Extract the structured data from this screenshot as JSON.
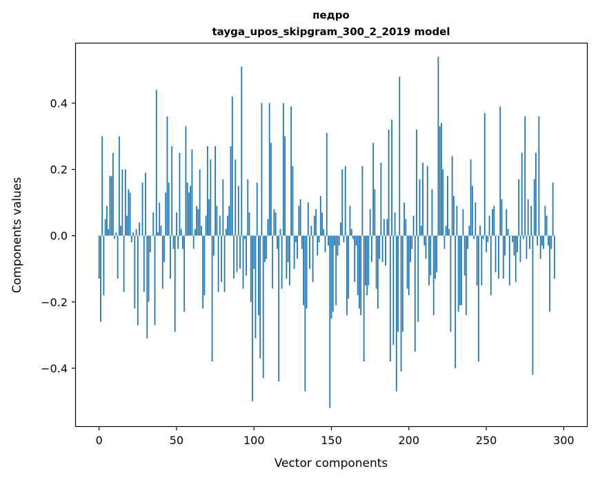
{
  "chart_data": {
    "type": "bar",
    "title": "педро",
    "subtitle": "tayga_upos_skipgram_300_2_2019 model",
    "xlabel": "Vector components",
    "ylabel": "Components values",
    "xlim": [
      -15,
      315
    ],
    "ylim": [
      -0.575,
      0.58
    ],
    "xticks": [
      0,
      50,
      100,
      150,
      200,
      250,
      300
    ],
    "yticks": [
      -0.4,
      -0.2,
      0.0,
      0.2,
      0.4
    ],
    "ytick_labels": [
      "−0.4",
      "−0.2",
      "0.0",
      "0.2",
      "0.4"
    ],
    "bar_color": "#1f77b4",
    "grid": false,
    "values": [
      -0.13,
      -0.26,
      0.3,
      -0.18,
      0.05,
      0.09,
      0.02,
      0.18,
      0.18,
      0.25,
      -0.01,
      0.01,
      -0.13,
      0.3,
      0.03,
      0.2,
      -0.17,
      0.2,
      0.06,
      0.14,
      0.13,
      -0.02,
      0.01,
      -0.22,
      0.02,
      -0.27,
      0.04,
      0.0,
      0.16,
      -0.17,
      0.19,
      -0.31,
      -0.2,
      -0.05,
      0.0,
      0.07,
      -0.27,
      0.44,
      0.01,
      0.1,
      0.03,
      -0.16,
      -0.08,
      0.13,
      0.36,
      0.16,
      -0.13,
      0.27,
      -0.04,
      -0.29,
      0.07,
      -0.04,
      0.25,
      0.02,
      -0.04,
      -0.23,
      0.33,
      0.16,
      0.13,
      0.15,
      0.26,
      -0.04,
      0.02,
      0.09,
      0.08,
      0.2,
      0.03,
      -0.22,
      -0.18,
      0.06,
      0.27,
      0.11,
      0.23,
      -0.38,
      -0.06,
      0.27,
      0.09,
      -0.17,
      0.06,
      -0.14,
      0.17,
      -0.17,
      0.02,
      0.06,
      0.09,
      0.27,
      0.42,
      -0.13,
      0.23,
      -0.11,
      0.15,
      -0.1,
      0.51,
      -0.16,
      -0.01,
      -0.12,
      0.17,
      0.07,
      -0.2,
      -0.5,
      -0.1,
      -0.31,
      0.16,
      -0.24,
      -0.37,
      0.4,
      -0.43,
      -0.08,
      -0.07,
      0.05,
      0.4,
      0.28,
      -0.16,
      0.08,
      0.07,
      -0.04,
      -0.44,
      0.02,
      -0.16,
      0.4,
      0.3,
      -0.13,
      -0.08,
      -0.15,
      0.39,
      0.21,
      -0.1,
      -0.02,
      -0.07,
      0.09,
      0.11,
      -0.04,
      -0.21,
      -0.47,
      -0.22,
      0.1,
      -0.1,
      0.03,
      -0.14,
      0.06,
      0.08,
      -0.06,
      -0.02,
      0.12,
      0.07,
      0.02,
      -0.05,
      0.31,
      -0.03,
      -0.52,
      -0.25,
      -0.23,
      -0.03,
      -0.21,
      -0.06,
      -0.03,
      0.04,
      0.2,
      -0.02,
      0.21,
      -0.24,
      -0.19,
      0.09,
      0.02,
      -0.01,
      -0.14,
      -0.03,
      -0.18,
      -0.22,
      -0.24,
      0.21,
      -0.38,
      -0.15,
      -0.18,
      -0.15,
      0.08,
      -0.08,
      0.28,
      0.14,
      -0.16,
      -0.22,
      -0.07,
      0.22,
      -0.08,
      0.05,
      -0.09,
      0.05,
      0.32,
      -0.38,
      0.35,
      -0.33,
      0.07,
      -0.47,
      -0.29,
      0.48,
      -0.41,
      -0.29,
      0.1,
      0.05,
      -0.16,
      -0.18,
      -0.08,
      -0.04,
      0.06,
      -0.35,
      0.32,
      -0.26,
      0.17,
      0.03,
      0.22,
      -0.03,
      -0.07,
      0.21,
      -0.15,
      -0.12,
      0.14,
      -0.24,
      -0.13,
      -0.11,
      0.54,
      0.33,
      0.34,
      0.2,
      -0.04,
      0.03,
      0.18,
      0.02,
      -0.29,
      0.24,
      0.12,
      -0.4,
      0.09,
      -0.23,
      -0.21,
      -0.21,
      0.08,
      -0.12,
      -0.24,
      -0.04,
      0.03,
      0.23,
      0.15,
      -0.01,
      0.1,
      -0.15,
      -0.38,
      0.03,
      -0.15,
      -0.01,
      0.37,
      -0.05,
      -0.02,
      0.06,
      -0.18,
      0.08,
      0.09,
      -0.11,
      0.0,
      -0.13,
      0.39,
      0.11,
      -0.13,
      -0.06,
      0.08,
      0.02,
      -0.15,
      0.0,
      -0.02,
      -0.06,
      -0.14,
      -0.05,
      0.17,
      -0.08,
      0.25,
      -0.01,
      0.36,
      -0.07,
      0.11,
      -0.04,
      0.09,
      -0.42,
      0.17,
      0.25,
      -0.03,
      0.36,
      -0.07,
      -0.03,
      -0.04,
      0.09,
      0.06,
      -0.03,
      -0.23,
      -0.04,
      0.16,
      -0.13
    ]
  }
}
